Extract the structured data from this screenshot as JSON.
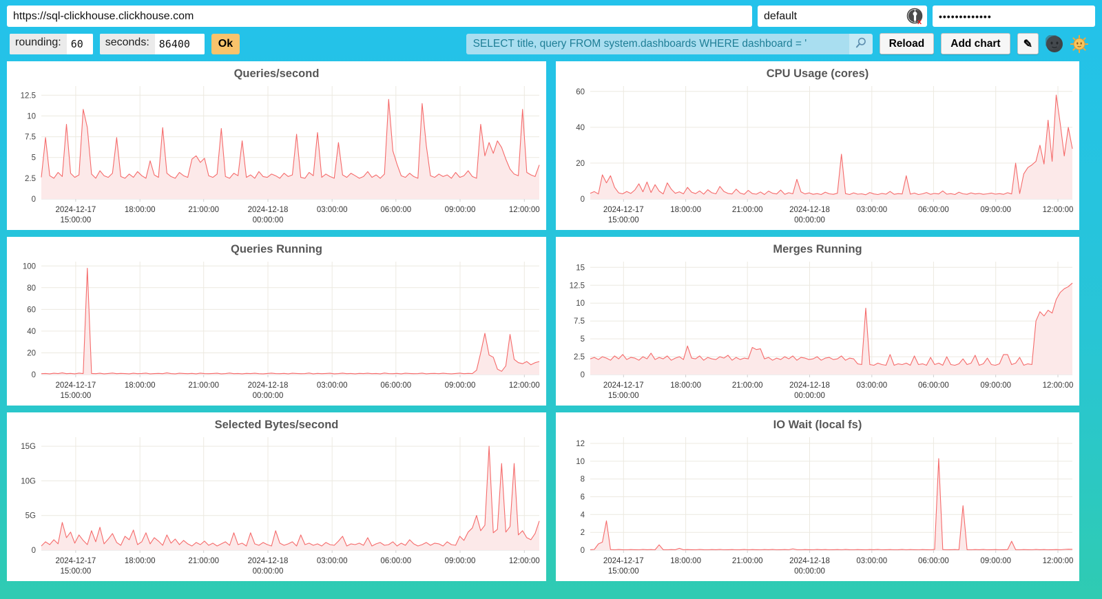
{
  "browser": {
    "url": "https://sql-clickhouse.clickhouse.com",
    "username": "default",
    "password_masked": "•••••••••••••",
    "user_icon": "user-no-password-icon"
  },
  "toolbar": {
    "rounding_label": "rounding:",
    "rounding_value": "60",
    "seconds_label": "seconds:",
    "seconds_value": "86400",
    "ok_label": "Ok",
    "query_value": "SELECT title, query FROM system.dashboards WHERE dashboard = '",
    "search_icon": "magnifier-icon",
    "reload_label": "Reload",
    "add_chart_label": "Add chart",
    "edit_icon": "pencil-icon",
    "pencil_glyph": "✎",
    "dark_theme_icon": "moon-face-icon",
    "light_theme_icon": "sun-face-icon"
  },
  "colors": {
    "background_top": "#23C2EB",
    "background_bottom": "#2FCBB2",
    "line": "#F56A6A",
    "area_fill": "#FCE9E9",
    "grid": "#ECE9E0",
    "ok_button": "#F9C36B",
    "query_bg": "#A9DEF0",
    "query_text": "#1E7E96"
  },
  "time_axis": {
    "tick_positions": [
      0.069,
      0.198,
      0.326,
      0.455,
      0.584,
      0.712,
      0.841,
      0.97
    ],
    "tick_labels": [
      [
        "2024-12-17",
        "15:00:00"
      ],
      [
        "18:00:00"
      ],
      [
        "21:00:00"
      ],
      [
        "2024-12-18",
        "00:00:00"
      ],
      [
        "03:00:00"
      ],
      [
        "06:00:00"
      ],
      [
        "09:00:00"
      ],
      [
        "12:00:00"
      ]
    ]
  },
  "chart_data": [
    {
      "type": "area",
      "title": "Queries/second",
      "grid": true,
      "legend": "none",
      "ymax": 13.6,
      "ytick_values": [
        0,
        2.5,
        5,
        7.5,
        10,
        12.5
      ],
      "ytick_labels": [
        "0",
        "2.5",
        "5",
        "7.5",
        "10",
        "12.5"
      ],
      "values": [
        2.6,
        7.4,
        2.8,
        2.5,
        3.2,
        2.7,
        9.0,
        3.1,
        2.6,
        2.9,
        10.8,
        8.6,
        3.0,
        2.5,
        3.4,
        2.8,
        2.6,
        3.1,
        7.4,
        2.7,
        2.5,
        3.0,
        2.6,
        3.3,
        2.8,
        2.5,
        4.6,
        2.9,
        2.6,
        8.6,
        3.1,
        2.7,
        2.5,
        3.2,
        2.8,
        2.6,
        4.8,
        5.2,
        4.4,
        4.9,
        2.8,
        2.6,
        3.0,
        8.5,
        2.7,
        2.5,
        3.1,
        2.8,
        7.0,
        2.6,
        2.9,
        2.5,
        3.3,
        2.7,
        2.6,
        3.0,
        2.8,
        2.5,
        3.1,
        2.7,
        2.9,
        7.8,
        2.6,
        2.5,
        3.2,
        2.8,
        8.0,
        2.6,
        3.0,
        2.7,
        2.5,
        6.8,
        2.9,
        2.6,
        3.1,
        2.8,
        2.5,
        2.7,
        3.3,
        2.6,
        2.9,
        2.5,
        3.0,
        12.0,
        5.8,
        4.2,
        2.8,
        2.6,
        3.1,
        2.7,
        2.5,
        11.5,
        6.4,
        2.8,
        2.6,
        3.0,
        2.7,
        2.9,
        2.5,
        3.2,
        2.6,
        2.8,
        3.4,
        2.7,
        2.5,
        9.0,
        5.2,
        6.8,
        5.5,
        7.0,
        6.2,
        4.8,
        3.6,
        3.0,
        2.8,
        10.8,
        3.2,
        2.9,
        2.7,
        4.1
      ]
    },
    {
      "type": "area",
      "title": "CPU Usage (cores)",
      "grid": true,
      "legend": "none",
      "ymax": 63,
      "ytick_values": [
        0,
        20,
        40,
        60
      ],
      "ytick_labels": [
        "0",
        "20",
        "40",
        "60"
      ],
      "values": [
        3.2,
        4.1,
        2.8,
        13.5,
        9.0,
        13.0,
        6.5,
        3.4,
        2.9,
        4.2,
        3.1,
        5.0,
        8.5,
        4.0,
        9.5,
        3.6,
        8.0,
        4.4,
        2.8,
        9.0,
        5.5,
        3.2,
        4.0,
        2.9,
        6.5,
        3.8,
        3.0,
        4.5,
        2.7,
        5.2,
        3.5,
        2.9,
        7.0,
        4.2,
        3.1,
        2.8,
        5.5,
        3.3,
        2.6,
        4.8,
        3.0,
        2.7,
        3.9,
        2.5,
        4.4,
        3.2,
        2.8,
        5.0,
        2.6,
        3.5,
        2.9,
        11.0,
        4.0,
        2.8,
        3.4,
        2.6,
        3.0,
        2.5,
        3.8,
        2.9,
        2.6,
        3.2,
        25.0,
        3.0,
        2.5,
        3.4,
        2.7,
        2.9,
        2.4,
        3.6,
        2.8,
        2.5,
        3.1,
        2.7,
        4.2,
        2.6,
        3.0,
        2.8,
        13.0,
        2.7,
        3.3,
        2.5,
        2.9,
        3.6,
        2.6,
        3.1,
        2.8,
        4.5,
        2.7,
        3.0,
        2.5,
        3.8,
        2.9,
        2.6,
        3.4,
        2.8,
        3.1,
        2.6,
        2.9,
        3.3,
        2.7,
        3.0,
        2.6,
        3.5,
        2.8,
        20.0,
        3.0,
        14.0,
        17.5,
        19.0,
        21.0,
        30.0,
        19.5,
        44.0,
        21.0,
        58.0,
        42.0,
        24.0,
        40.0,
        28.0
      ]
    },
    {
      "type": "area",
      "title": "Queries Running",
      "grid": true,
      "legend": "none",
      "ymax": 104,
      "ytick_values": [
        0,
        20,
        40,
        60,
        80,
        100
      ],
      "ytick_labels": [
        "0",
        "20",
        "40",
        "60",
        "80",
        "100"
      ],
      "values": [
        0.8,
        1.0,
        0.7,
        1.2,
        0.9,
        1.5,
        0.8,
        1.1,
        0.7,
        1.3,
        0.9,
        98.0,
        1.0,
        0.8,
        1.2,
        0.7,
        1.0,
        1.4,
        0.8,
        1.1,
        0.9,
        0.7,
        1.2,
        0.8,
        1.0,
        1.3,
        0.7,
        0.9,
        1.1,
        0.8,
        1.5,
        0.9,
        0.7,
        1.2,
        1.0,
        0.8,
        1.1,
        0.7,
        1.3,
        0.9,
        0.8,
        1.0,
        1.2,
        0.7,
        0.9,
        1.4,
        0.8,
        1.0,
        0.7,
        1.1,
        0.9,
        1.2,
        0.8,
        0.7,
        1.0,
        1.3,
        0.9,
        0.8,
        1.1,
        0.7,
        1.2,
        1.0,
        0.8,
        0.9,
        1.4,
        0.7,
        1.1,
        0.8,
        1.0,
        1.2,
        0.7,
        0.9,
        1.3,
        0.8,
        1.0,
        0.7,
        1.1,
        0.9,
        1.2,
        0.8,
        1.0,
        0.7,
        1.4,
        0.9,
        0.8,
        1.1,
        0.7,
        1.2,
        1.0,
        0.8,
        0.9,
        1.3,
        0.7,
        1.0,
        1.1,
        0.8,
        1.2,
        0.9,
        0.7,
        1.0,
        1.3,
        0.8,
        1.1,
        0.9,
        4.0,
        20.0,
        38.0,
        18.0,
        16.0,
        5.0,
        3.0,
        8.0,
        37.0,
        14.0,
        11.0,
        10.0,
        12.0,
        9.0,
        11.0,
        12.0
      ]
    },
    {
      "type": "area",
      "title": "Merges Running",
      "grid": true,
      "legend": "none",
      "ymax": 15.8,
      "ytick_values": [
        0,
        2.5,
        5,
        7.5,
        10,
        12.5,
        15
      ],
      "ytick_labels": [
        "0",
        "2.5",
        "5",
        "7.5",
        "10",
        "12.5",
        "15"
      ],
      "values": [
        2.2,
        2.4,
        2.1,
        2.5,
        2.3,
        2.0,
        2.6,
        2.2,
        2.8,
        2.1,
        2.4,
        2.3,
        2.0,
        2.5,
        2.2,
        3.0,
        2.1,
        2.4,
        2.2,
        2.6,
        2.0,
        2.3,
        2.5,
        2.1,
        4.0,
        2.3,
        2.2,
        2.6,
        2.0,
        2.4,
        2.2,
        2.1,
        2.5,
        2.3,
        2.7,
        2.0,
        2.4,
        2.1,
        2.3,
        2.2,
        3.8,
        3.5,
        3.6,
        2.2,
        2.4,
        2.0,
        2.3,
        2.1,
        2.5,
        2.2,
        2.6,
        2.0,
        2.4,
        2.3,
        2.1,
        2.2,
        2.5,
        2.0,
        2.3,
        2.4,
        2.1,
        2.2,
        2.6,
        2.0,
        2.3,
        2.2,
        1.5,
        1.4,
        9.3,
        1.4,
        1.3,
        1.6,
        1.4,
        1.3,
        2.8,
        1.3,
        1.5,
        1.4,
        1.6,
        1.3,
        2.6,
        1.4,
        1.5,
        1.3,
        2.4,
        1.4,
        1.6,
        1.3,
        2.5,
        1.4,
        1.3,
        1.5,
        2.2,
        1.4,
        1.6,
        2.7,
        1.3,
        1.5,
        2.3,
        1.4,
        1.3,
        1.5,
        2.8,
        2.8,
        1.4,
        1.6,
        2.4,
        1.3,
        1.5,
        1.4,
        7.5,
        8.8,
        8.2,
        9.0,
        8.6,
        10.5,
        11.5,
        12.0,
        12.3,
        12.8
      ]
    },
    {
      "type": "area",
      "title": "Selected Bytes/second",
      "grid": true,
      "legend": "none",
      "unit": "G",
      "ymax": 16.3,
      "ytick_values": [
        0,
        5,
        10,
        15
      ],
      "ytick_labels": [
        "0",
        "5G",
        "10G",
        "15G"
      ],
      "values": [
        0.6,
        1.2,
        0.8,
        1.5,
        0.9,
        4.0,
        1.8,
        2.6,
        1.0,
        2.2,
        1.4,
        0.8,
        2.8,
        1.2,
        3.3,
        0.9,
        1.6,
        2.4,
        1.1,
        0.7,
        2.0,
        1.5,
        2.9,
        0.8,
        1.2,
        2.5,
        0.9,
        1.8,
        1.3,
        0.7,
        2.2,
        1.0,
        1.6,
        0.8,
        1.4,
        0.9,
        0.6,
        1.1,
        0.8,
        1.3,
        0.7,
        1.0,
        0.6,
        0.9,
        1.2,
        0.7,
        2.5,
        0.8,
        1.0,
        0.6,
        2.5,
        0.9,
        0.7,
        1.1,
        0.8,
        0.6,
        2.8,
        1.0,
        0.7,
        0.9,
        1.2,
        0.6,
        2.2,
        0.8,
        1.0,
        0.7,
        0.9,
        0.6,
        1.1,
        0.8,
        0.7,
        1.3,
        2.0,
        0.6,
        0.9,
        0.8,
        1.0,
        0.7,
        1.8,
        0.6,
        0.9,
        1.1,
        0.7,
        0.8,
        1.2,
        0.6,
        1.0,
        0.7,
        1.5,
        0.9,
        0.6,
        0.8,
        1.1,
        0.7,
        1.0,
        0.9,
        0.6,
        1.2,
        0.8,
        0.7,
        2.0,
        1.4,
        2.6,
        3.2,
        5.0,
        2.8,
        3.6,
        15.0,
        2.5,
        3.0,
        12.5,
        2.6,
        3.4,
        12.5,
        2.2,
        2.8,
        1.8,
        1.5,
        2.4,
        4.2
      ]
    },
    {
      "type": "area",
      "title": "IO Wait (local fs)",
      "grid": true,
      "legend": "none",
      "ymax": 12.7,
      "ytick_values": [
        0,
        2,
        4,
        6,
        8,
        10,
        12
      ],
      "ytick_labels": [
        "0",
        "2",
        "4",
        "6",
        "8",
        "10",
        "12"
      ],
      "values": [
        0.05,
        0.08,
        0.7,
        0.9,
        3.3,
        0.06,
        0.04,
        0.07,
        0.05,
        0.04,
        0.06,
        0.05,
        0.04,
        0.07,
        0.05,
        0.06,
        0.04,
        0.6,
        0.05,
        0.04,
        0.06,
        0.05,
        0.2,
        0.04,
        0.06,
        0.05,
        0.04,
        0.07,
        0.05,
        0.04,
        0.06,
        0.05,
        0.07,
        0.04,
        0.05,
        0.06,
        0.04,
        0.05,
        0.07,
        0.04,
        0.06,
        0.05,
        0.04,
        0.06,
        0.05,
        0.07,
        0.04,
        0.05,
        0.06,
        0.04,
        0.15,
        0.05,
        0.04,
        0.06,
        0.05,
        0.04,
        0.07,
        0.05,
        0.06,
        0.04,
        0.05,
        0.06,
        0.04,
        0.07,
        0.05,
        0.04,
        0.06,
        0.05,
        0.04,
        0.06,
        0.05,
        0.07,
        0.04,
        0.05,
        0.06,
        0.04,
        0.05,
        0.07,
        0.04,
        0.06,
        0.05,
        0.04,
        0.06,
        0.05,
        0.04,
        0.07,
        10.3,
        0.06,
        0.04,
        0.05,
        0.06,
        0.04,
        5.0,
        0.05,
        0.04,
        0.06,
        0.05,
        0.07,
        0.04,
        0.05,
        0.06,
        0.04,
        0.05,
        0.06,
        1.0,
        0.05,
        0.04,
        0.06,
        0.05,
        0.04,
        0.07,
        0.05,
        0.06,
        0.04,
        0.05,
        0.06,
        0.04,
        0.08,
        0.1,
        0.09
      ]
    }
  ]
}
